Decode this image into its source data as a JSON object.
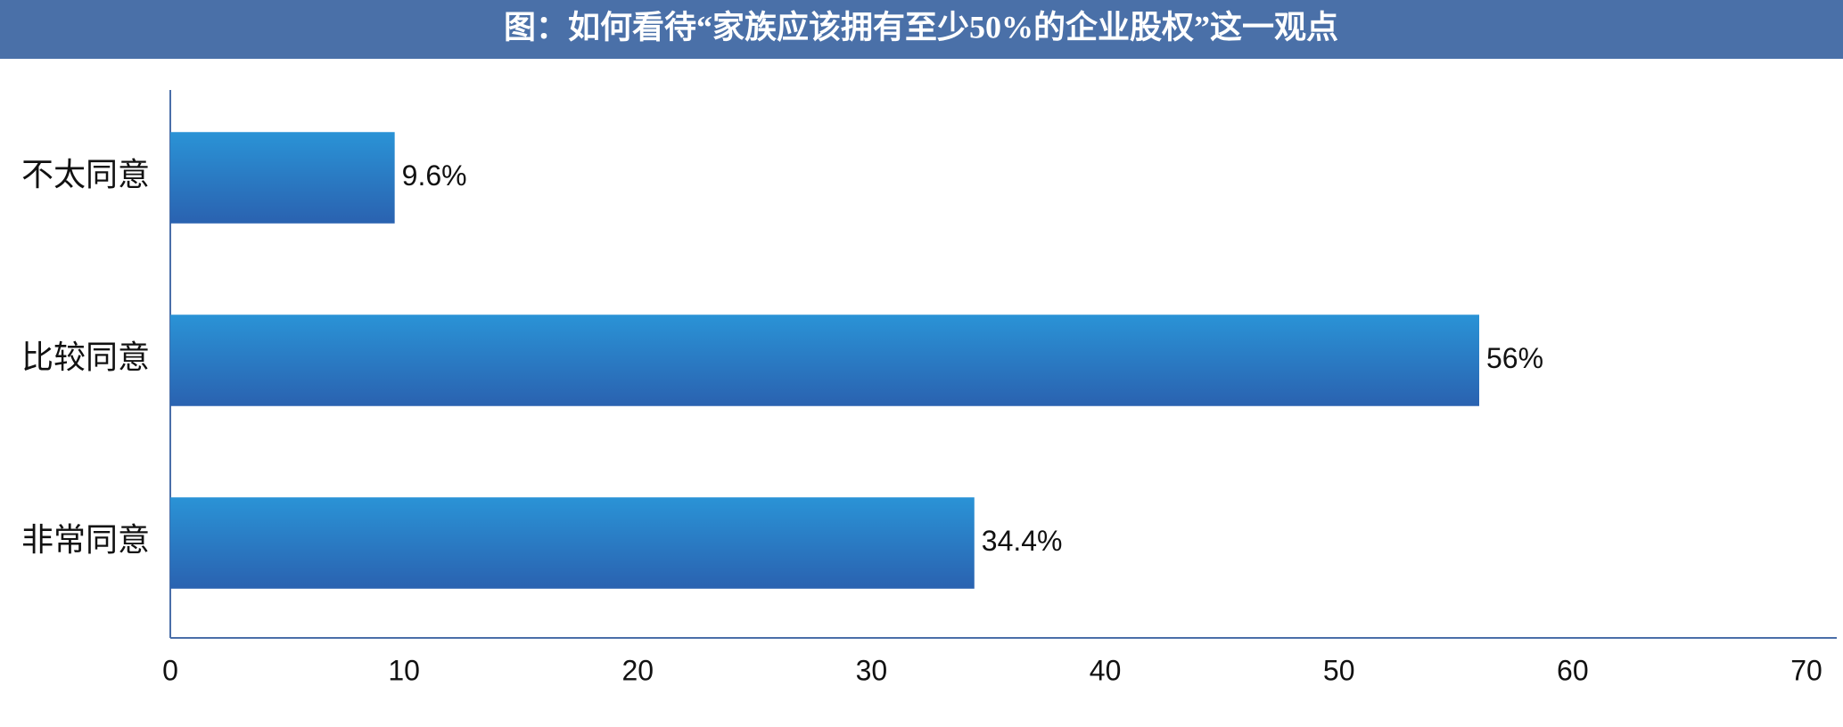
{
  "chart_data": {
    "type": "hbar",
    "title": "图：如何看待“家族应该拥有至少50%的企业股权”这一观点",
    "categories": [
      "不太同意",
      "比较同意",
      "非常同意"
    ],
    "values": [
      9.6,
      56,
      34.4
    ],
    "value_labels": [
      "9.6%",
      "56%",
      "34.4%"
    ],
    "color": "#2a7cc6",
    "xlim": [
      0,
      70
    ],
    "xticks": [
      0,
      10,
      20,
      30,
      40,
      50,
      60,
      70
    ],
    "grid": false
  }
}
